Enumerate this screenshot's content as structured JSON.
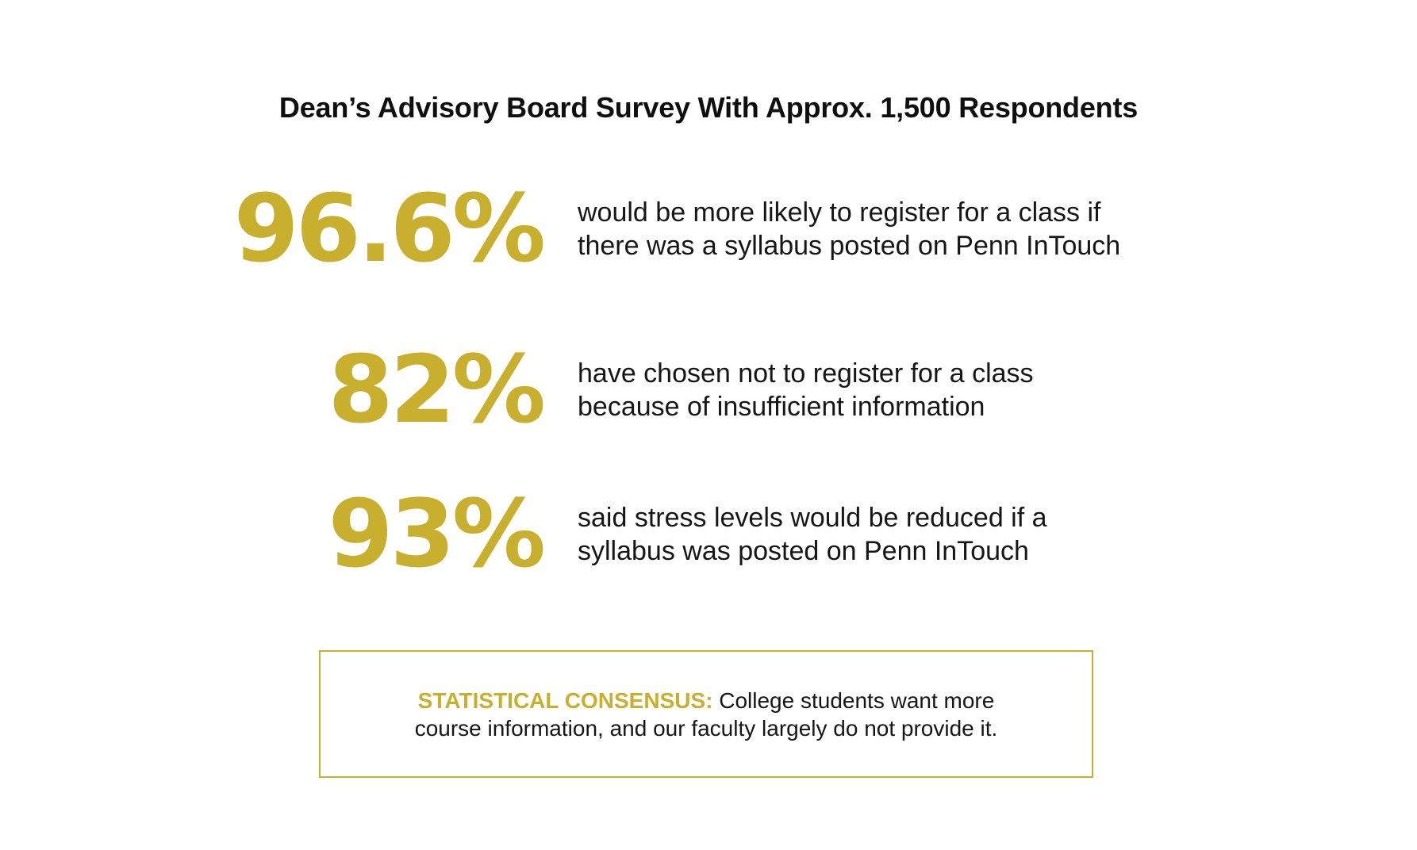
{
  "title": "Dean’s Advisory Board Survey With Approx. 1,500 Respondents",
  "colors": {
    "accent": "#c9af2e",
    "text": "#161616",
    "background": "#ffffff"
  },
  "stats": [
    {
      "value": "96.6%",
      "description_lines": [
        "would be more likely to register for a class if",
        "there was a syllabus posted on Penn InTouch"
      ]
    },
    {
      "value": "82%",
      "description_lines": [
        "have chosen not to register for a class",
        "because of insufficient information"
      ]
    },
    {
      "value": "93%",
      "description_lines": [
        "said stress levels would be reduced if a",
        "syllabus was posted on Penn InTouch"
      ]
    }
  ],
  "consensus": {
    "label": "STATISTICAL CONSENSUS:",
    "text_line1": "College students want more",
    "text_line2": "course information, and our faculty largely do not provide it."
  }
}
